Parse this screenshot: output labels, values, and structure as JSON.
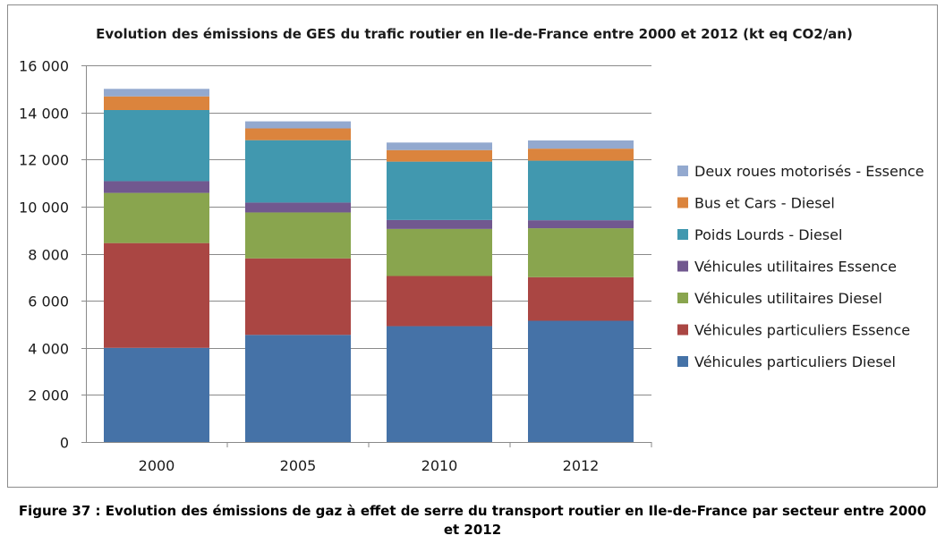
{
  "chart_data": {
    "type": "bar",
    "stacked": true,
    "title": "Evolution des émissions de GES du trafic routier en Ile-de-France entre 2000 et 2012 (kt eq CO2/an)",
    "categories": [
      "2000",
      "2005",
      "2010",
      "2012"
    ],
    "ylim": [
      0,
      16000
    ],
    "yticks": [
      0,
      2000,
      4000,
      6000,
      8000,
      10000,
      12000,
      14000,
      16000
    ],
    "ytick_labels": [
      "0",
      "2 000",
      "4 000",
      "6 000",
      "8 000",
      "10 000",
      "12 000",
      "14 000",
      "16 000"
    ],
    "grid": true,
    "legend_position": "right",
    "series": [
      {
        "name": "Véhicules particuliers Diesel",
        "color": "#4572a7",
        "values": [
          4000,
          4550,
          4920,
          5150
        ]
      },
      {
        "name": "Véhicules particuliers Essence",
        "color": "#aa4643",
        "values": [
          4450,
          3250,
          2130,
          1850
        ]
      },
      {
        "name": "Véhicules utilitaires Diesel",
        "color": "#89a54e",
        "values": [
          2130,
          1950,
          2000,
          2080
        ]
      },
      {
        "name": "Véhicules utilitaires Essence",
        "color": "#71588f",
        "values": [
          500,
          420,
          380,
          340
        ]
      },
      {
        "name": "Poids Lourds - Diesel",
        "color": "#4198af",
        "values": [
          3020,
          2650,
          2480,
          2530
        ]
      },
      {
        "name": "Bus et Cars - Diesel",
        "color": "#db843d",
        "values": [
          580,
          500,
          490,
          510
        ]
      },
      {
        "name": "Deux roues motorisés - Essence",
        "color": "#93a9cf",
        "values": [
          320,
          300,
          320,
          350
        ]
      }
    ]
  },
  "caption": {
    "line1": "Figure 37 : Evolution des émissions de gaz à effet de serre du transport routier en Ile-de-France par secteur entre 2000",
    "line2": "et 2012"
  }
}
